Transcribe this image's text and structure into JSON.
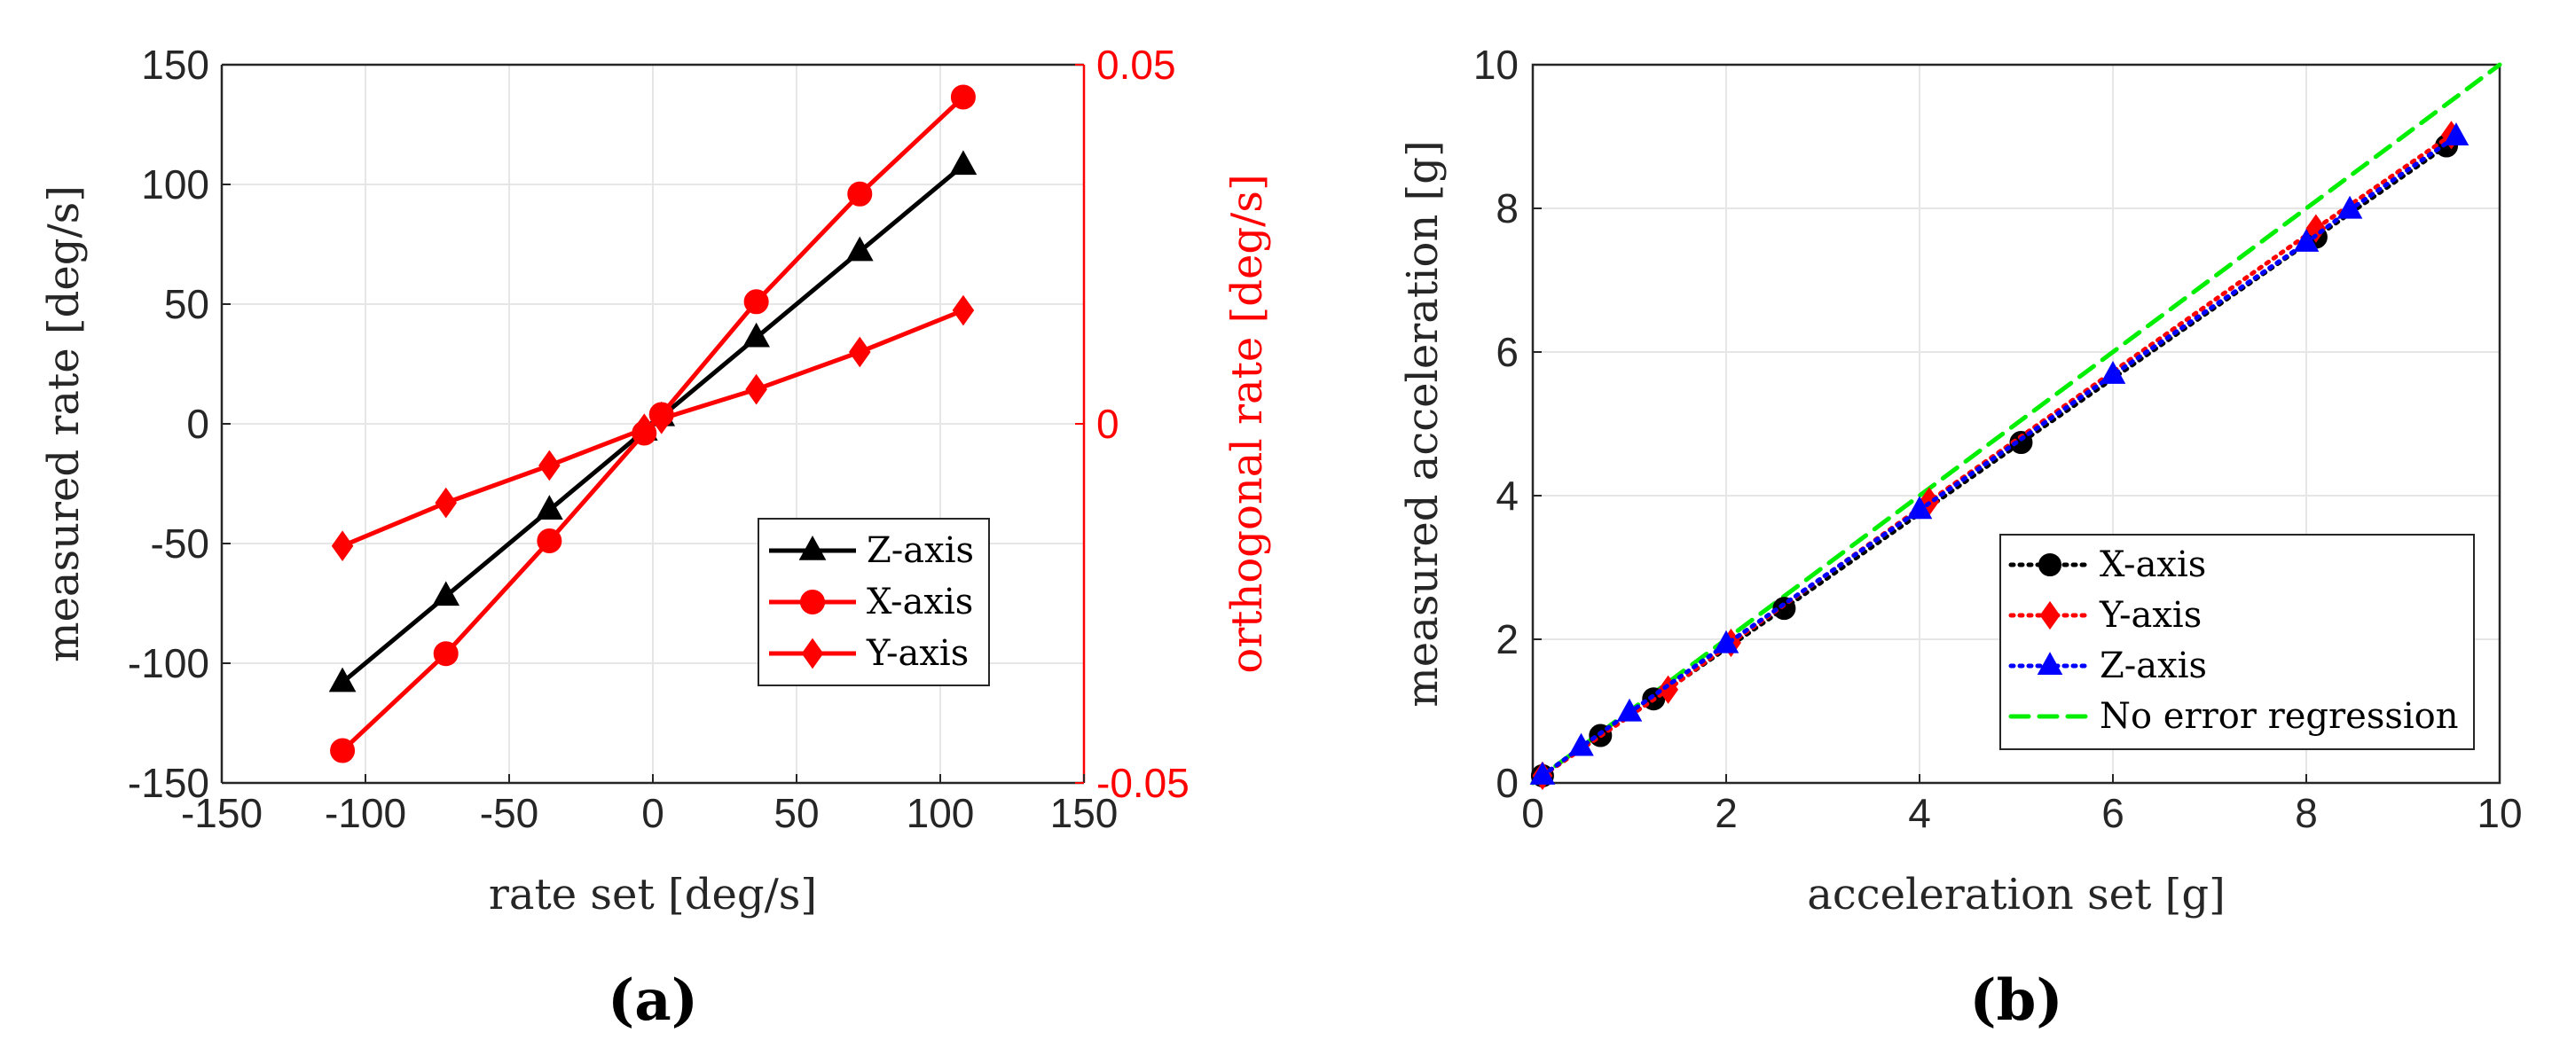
{
  "chart_data": [
    {
      "type": "line",
      "panel_label": "(a)",
      "xlabel": "rate set [deg/s]",
      "ylabel": "measured rate [deg/s]",
      "y2label": "orthogonal rate [deg/s]",
      "xlim": [
        -150,
        150
      ],
      "ylim": [
        -150,
        150
      ],
      "y2lim": [
        -0.05,
        0.05
      ],
      "xticks": [
        "-150",
        "-100",
        "-50",
        "0",
        "50",
        "100",
        "150"
      ],
      "yticks": [
        "-150",
        "-100",
        "-50",
        "0",
        "50",
        "100",
        "150"
      ],
      "y2ticks": [
        "-0.05",
        "0",
        "0.05"
      ],
      "grid": true,
      "legend_position": "lower-right",
      "colors": {
        "black": "#000000",
        "red": "#ff0000",
        "grid": "#e6e6e6"
      },
      "series": [
        {
          "name": "Z-axis",
          "axis": "left",
          "color": "#000000",
          "marker": "triangle",
          "linestyle": "solid",
          "x": [
            -108,
            -72,
            -36,
            -3,
            3,
            36,
            72,
            108
          ],
          "y": [
            -108,
            -72,
            -36,
            -3,
            3,
            36,
            72,
            108
          ]
        },
        {
          "name": "X-axis",
          "axis": "right",
          "color": "#ff0000",
          "marker": "circle",
          "linestyle": "solid",
          "x": [
            -108,
            -72,
            -36,
            -3,
            3,
            36,
            72,
            108
          ],
          "y": [
            -0.0455,
            -0.032,
            -0.0163,
            -0.0013,
            0.0013,
            0.017,
            0.032,
            0.0455
          ]
        },
        {
          "name": "Y-axis",
          "axis": "right",
          "color": "#ff0000",
          "marker": "diamond",
          "linestyle": "solid",
          "x": [
            -108,
            -72,
            -36,
            -3,
            3,
            36,
            72,
            108
          ],
          "y": [
            -0.017,
            -0.011,
            -0.0058,
            -0.0007,
            0.0007,
            0.0048,
            0.01,
            0.0158
          ]
        }
      ]
    },
    {
      "type": "line",
      "panel_label": "(b)",
      "xlabel": "acceleration set [g]",
      "ylabel": "measured acceleration [g]",
      "xlim": [
        0,
        10
      ],
      "ylim": [
        0,
        10
      ],
      "xticks": [
        "0",
        "2",
        "4",
        "6",
        "8",
        "10"
      ],
      "yticks": [
        "0",
        "2",
        "4",
        "6",
        "8",
        "10"
      ],
      "grid": true,
      "legend_position": "lower-right",
      "colors": {
        "black": "#000000",
        "red": "#ff0000",
        "blue": "#0000ff",
        "green": "#00ee00",
        "grid": "#e6e6e6"
      },
      "series": [
        {
          "name": "X-axis",
          "color": "#000000",
          "marker": "circle",
          "linestyle": "dotted",
          "x": [
            0.1,
            0.7,
            1.25,
            2.6,
            5.05,
            8.1,
            9.45
          ],
          "y": [
            0.1,
            0.66,
            1.17,
            2.43,
            4.74,
            7.6,
            8.87
          ]
        },
        {
          "name": "Y-axis",
          "color": "#ff0000",
          "marker": "diamond",
          "linestyle": "dotted",
          "x": [
            0.1,
            1.4,
            2.05,
            4.1,
            8.1,
            9.5
          ],
          "y": [
            0.1,
            1.3,
            1.95,
            3.92,
            7.72,
            9.02
          ]
        },
        {
          "name": "Z-axis",
          "color": "#0000ff",
          "marker": "triangle",
          "linestyle": "dotted",
          "x": [
            0.1,
            0.5,
            1.0,
            2.0,
            4.0,
            6.0,
            8.0,
            8.45,
            9.55
          ],
          "y": [
            0.1,
            0.5,
            0.98,
            1.93,
            3.8,
            5.68,
            7.52,
            7.98,
            9.0
          ]
        },
        {
          "name": "No error regression",
          "color": "#00ee00",
          "marker": "none",
          "linestyle": "dashed",
          "x": [
            0,
            10
          ],
          "y": [
            0,
            10
          ]
        }
      ]
    }
  ]
}
